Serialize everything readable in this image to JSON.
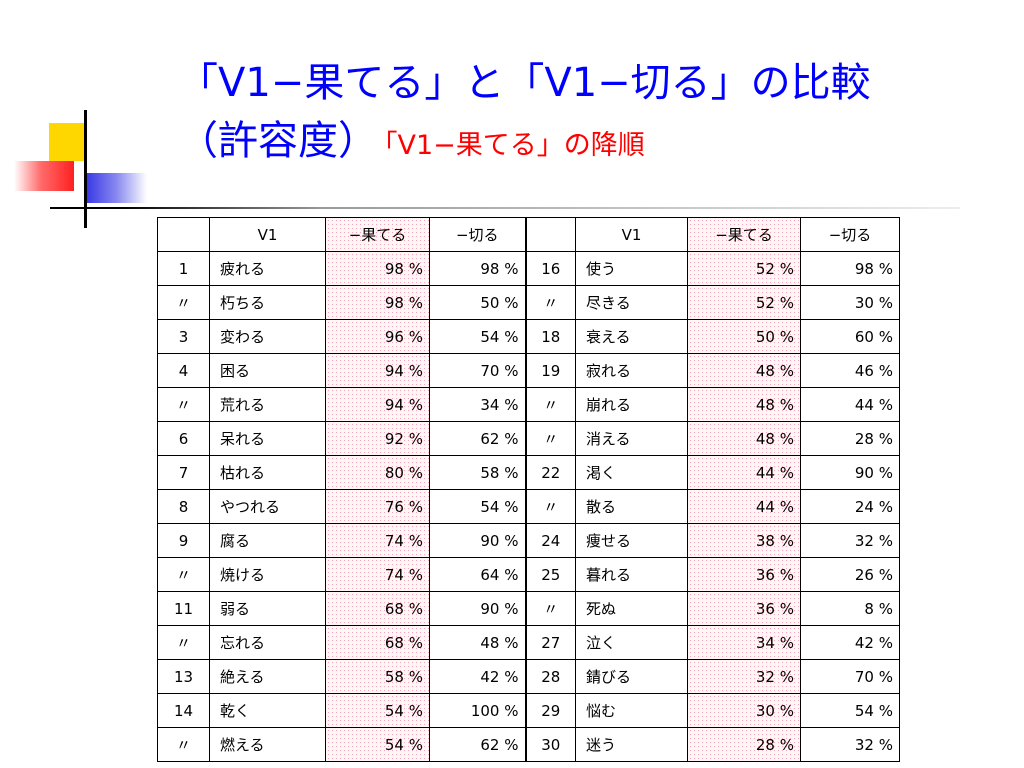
{
  "title": {
    "line1": "「V1−果てる」と「V1−切る」の比較",
    "line2": "（許容度）",
    "subtitle": "「V1−果てる」の降順"
  },
  "table": {
    "headers": [
      "",
      "V1",
      "−果てる",
      "−切る",
      "",
      "V1",
      "−果てる",
      "−切る"
    ],
    "rows": [
      [
        "1",
        "疲れる",
        "98 %",
        "98 %",
        "16",
        "使う",
        "52 %",
        "98 %"
      ],
      [
        "〃",
        "朽ちる",
        "98 %",
        "50 %",
        "〃",
        "尽きる",
        "52 %",
        "30 %"
      ],
      [
        "3",
        "変わる",
        "96 %",
        "54 %",
        "18",
        "衰える",
        "50 %",
        "60 %"
      ],
      [
        "4",
        "困る",
        "94 %",
        "70 %",
        "19",
        "寂れる",
        "48 %",
        "46 %"
      ],
      [
        "〃",
        "荒れる",
        "94 %",
        "34 %",
        "〃",
        "崩れる",
        "48 %",
        "44 %"
      ],
      [
        "6",
        "呆れる",
        "92 %",
        "62 %",
        "〃",
        "消える",
        "48 %",
        "28 %"
      ],
      [
        "7",
        "枯れる",
        "80 %",
        "58 %",
        "22",
        "渇く",
        "44 %",
        "90 %"
      ],
      [
        "8",
        "やつれる",
        "76 %",
        "54 %",
        "〃",
        "散る",
        "44 %",
        "24 %"
      ],
      [
        "9",
        "腐る",
        "74 %",
        "90 %",
        "24",
        "痩せる",
        "38 %",
        "32 %"
      ],
      [
        "〃",
        "焼ける",
        "74 %",
        "64 %",
        "25",
        "暮れる",
        "36 %",
        "26 %"
      ],
      [
        "11",
        "弱る",
        "68 %",
        "90 %",
        "〃",
        "死ぬ",
        "36 %",
        "8 %"
      ],
      [
        "〃",
        "忘れる",
        "68 %",
        "48 %",
        "27",
        "泣く",
        "34 %",
        "42 %"
      ],
      [
        "13",
        "絶える",
        "58 %",
        "42 %",
        "28",
        "錆びる",
        "32 %",
        "70 %"
      ],
      [
        "14",
        "乾く",
        "54 %",
        "100 %",
        "29",
        "悩む",
        "30 %",
        "54 %"
      ],
      [
        "〃",
        "燃える",
        "54 %",
        "62 %",
        "30",
        "迷う",
        "28 %",
        "32 %"
      ]
    ]
  },
  "colors": {
    "title": "#0000ff",
    "subtitle": "#ff0000",
    "highlight_column": "#f2a6b7"
  }
}
